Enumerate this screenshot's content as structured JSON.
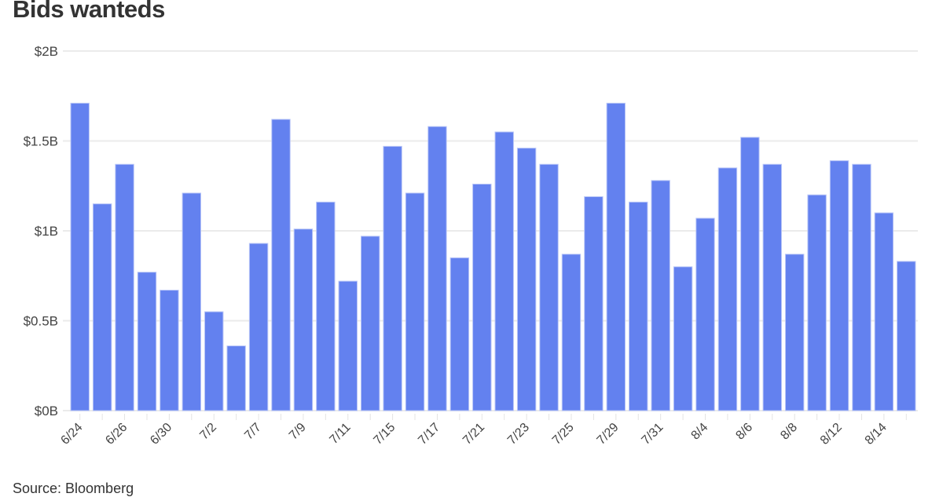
{
  "chart_data": {
    "type": "bar",
    "title": "Bids wanteds",
    "source": "Source: Bloomberg",
    "xlabel": "",
    "ylabel": "",
    "ylim": [
      0,
      2
    ],
    "y_ticks": [
      {
        "value": 0,
        "label": "$0B"
      },
      {
        "value": 0.5,
        "label": "$0.5B"
      },
      {
        "value": 1,
        "label": "$1B"
      },
      {
        "value": 1.5,
        "label": "$1.5B"
      },
      {
        "value": 2,
        "label": "$2B"
      }
    ],
    "grid": true,
    "bar_color": "#6381ef",
    "categories": [
      "6/24",
      "6/25",
      "6/26",
      "6/27",
      "6/30",
      "7/1",
      "7/2",
      "7/3",
      "7/7",
      "7/8",
      "7/9",
      "7/10",
      "7/11",
      "7/14",
      "7/15",
      "7/16",
      "7/17",
      "7/18",
      "7/21",
      "7/22",
      "7/23",
      "7/24",
      "7/25",
      "7/28",
      "7/29",
      "7/30",
      "7/31",
      "8/1",
      "8/4",
      "8/5",
      "8/6",
      "8/7",
      "8/8",
      "8/11",
      "8/12",
      "8/13",
      "8/14",
      "8/15"
    ],
    "x_tick_labels": [
      "6/24",
      "6/26",
      "6/30",
      "7/2",
      "7/7",
      "7/9",
      "7/11",
      "7/15",
      "7/17",
      "7/21",
      "7/23",
      "7/25",
      "7/29",
      "7/31",
      "8/4",
      "8/6",
      "8/8",
      "8/12",
      "8/14"
    ],
    "values": [
      1.71,
      1.15,
      1.37,
      0.77,
      0.67,
      1.21,
      0.55,
      0.36,
      0.93,
      1.62,
      1.01,
      1.16,
      0.72,
      0.97,
      1.47,
      1.21,
      1.58,
      0.85,
      1.26,
      1.55,
      1.46,
      1.37,
      0.87,
      1.19,
      1.71,
      1.16,
      1.28,
      0.8,
      1.07,
      1.35,
      1.52,
      1.37,
      0.87,
      1.2,
      1.39,
      1.37,
      1.1,
      0.83
    ]
  }
}
